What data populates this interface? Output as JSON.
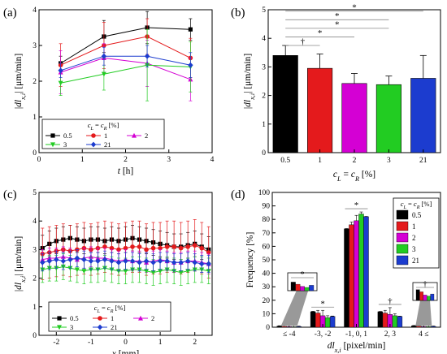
{
  "panels": {
    "a": "(a)",
    "b": "(b)",
    "c": "(c)",
    "d": "(d)"
  },
  "chart_data": [
    {
      "panel": "a",
      "type": "line",
      "xlabel": "t [h]",
      "ylabel": "|dl_x,i| [μm/min]",
      "xlim": [
        0,
        4
      ],
      "ylim": [
        0,
        4
      ],
      "xticks": [
        "0",
        "1",
        "2",
        "3",
        "4"
      ],
      "yticks": [
        "0",
        "1",
        "2",
        "3",
        "4"
      ],
      "legend_title": "c_L = c_R [%]",
      "x": [
        0.5,
        1.5,
        2.5,
        3.5
      ],
      "series": [
        {
          "name": "0.5",
          "color": "#000000",
          "marker": "square",
          "values": [
            2.5,
            3.25,
            3.5,
            3.45
          ],
          "err": [
            0.2,
            0.45,
            0.45,
            0.3
          ]
        },
        {
          "name": "1",
          "color": "#e41a1c",
          "marker": "circle",
          "values": [
            2.45,
            3.0,
            3.25,
            2.65
          ],
          "err": [
            0.6,
            0.65,
            0.5,
            0.55
          ]
        },
        {
          "name": "2",
          "color": "#d400d4",
          "marker": "tri-up",
          "values": [
            2.25,
            2.65,
            2.5,
            2.05
          ],
          "err": [
            0.6,
            0.4,
            0.65,
            0.6
          ]
        },
        {
          "name": "3",
          "color": "#22cc22",
          "marker": "tri-down",
          "values": [
            1.95,
            2.2,
            2.45,
            2.4
          ],
          "err": [
            0.35,
            0.45,
            1.0,
            0.7
          ]
        },
        {
          "name": "21",
          "color": "#1c3ccf",
          "marker": "diamond",
          "values": [
            2.3,
            2.7,
            2.7,
            2.45
          ],
          "err": [
            0.2,
            0.25,
            0.3,
            0.35
          ]
        }
      ]
    },
    {
      "panel": "b",
      "type": "bar",
      "xlabel": "c_L = c_R [%]",
      "ylabel": "|dl_x,i| [μm/min]",
      "ylim": [
        0,
        5
      ],
      "yticks": [
        "0",
        "1",
        "2",
        "3",
        "4",
        "5"
      ],
      "categories": [
        "0.5",
        "1",
        "2",
        "3",
        "21"
      ],
      "colors": [
        "#000000",
        "#e41a1c",
        "#d400d4",
        "#22cc22",
        "#1c3ccf"
      ],
      "values": [
        3.4,
        2.95,
        2.42,
        2.38,
        2.6
      ],
      "err": [
        0.35,
        0.5,
        0.35,
        0.3,
        0.8
      ],
      "significance": [
        {
          "from": 0,
          "to": 1,
          "label": "†",
          "y": 3.75
        },
        {
          "from": 0,
          "to": 2,
          "label": "*",
          "y": 4.05
        },
        {
          "from": 0,
          "to": 3,
          "label": "*",
          "y": 4.35
        },
        {
          "from": 0,
          "to": 3,
          "label": "*",
          "y": 4.65
        },
        {
          "from": 0,
          "to": 4,
          "label": "*",
          "y": 4.95
        }
      ]
    },
    {
      "panel": "c",
      "type": "line",
      "xlabel": "x [mm]",
      "ylabel": "|dl_x,i| [μm/min]",
      "xlim": [
        -2.5,
        2.5
      ],
      "ylim": [
        0,
        5
      ],
      "xticks": [
        "-2",
        "-1",
        "0",
        "1",
        "2"
      ],
      "yticks": [
        "0",
        "1",
        "2",
        "3",
        "4",
        "5"
      ],
      "legend_title": "c_L = c_R [%]",
      "x": [
        -2.4,
        -2.2,
        -2.0,
        -1.8,
        -1.6,
        -1.4,
        -1.2,
        -1.0,
        -0.8,
        -0.6,
        -0.4,
        -0.2,
        0.0,
        0.2,
        0.4,
        0.6,
        0.8,
        1.0,
        1.2,
        1.4,
        1.6,
        1.8,
        2.0,
        2.2,
        2.4
      ],
      "series": [
        {
          "name": "0.5",
          "color": "#000000",
          "marker": "square",
          "err": 0.45,
          "values": [
            3.05,
            3.2,
            3.3,
            3.35,
            3.4,
            3.35,
            3.3,
            3.35,
            3.35,
            3.3,
            3.35,
            3.3,
            3.35,
            3.4,
            3.35,
            3.3,
            3.25,
            3.2,
            3.15,
            3.1,
            3.1,
            3.15,
            3.2,
            3.1,
            3.0
          ]
        },
        {
          "name": "1",
          "color": "#e41a1c",
          "marker": "circle",
          "err": 0.9,
          "values": [
            2.85,
            2.9,
            2.95,
            3.0,
            2.95,
            3.0,
            3.05,
            3.0,
            3.05,
            3.1,
            3.05,
            3.0,
            3.05,
            3.1,
            3.1,
            3.0,
            3.05,
            3.05,
            3.1,
            3.1,
            3.05,
            3.1,
            3.15,
            3.05,
            2.9
          ]
        },
        {
          "name": "2",
          "color": "#d400d4",
          "marker": "tri-up",
          "err": 0.35,
          "values": [
            2.65,
            2.7,
            2.7,
            2.75,
            2.7,
            2.65,
            2.7,
            2.75,
            2.7,
            2.7,
            2.65,
            2.6,
            2.65,
            2.6,
            2.6,
            2.55,
            2.6,
            2.65,
            2.6,
            2.55,
            2.55,
            2.6,
            2.6,
            2.55,
            2.5
          ]
        },
        {
          "name": "3",
          "color": "#22cc22",
          "marker": "tri-down",
          "err": 0.45,
          "values": [
            2.3,
            2.35,
            2.35,
            2.4,
            2.35,
            2.3,
            2.25,
            2.3,
            2.3,
            2.35,
            2.3,
            2.25,
            2.25,
            2.3,
            2.3,
            2.25,
            2.2,
            2.25,
            2.3,
            2.25,
            2.2,
            2.25,
            2.3,
            2.3,
            2.25
          ]
        },
        {
          "name": "21",
          "color": "#1c3ccf",
          "marker": "diamond",
          "err": 0.3,
          "values": [
            2.55,
            2.6,
            2.65,
            2.6,
            2.65,
            2.7,
            2.65,
            2.6,
            2.6,
            2.65,
            2.6,
            2.55,
            2.6,
            2.6,
            2.55,
            2.6,
            2.55,
            2.6,
            2.6,
            2.55,
            2.55,
            2.6,
            2.55,
            2.5,
            2.5
          ]
        }
      ]
    },
    {
      "panel": "d",
      "type": "bar",
      "xlabel": "dl_x,i [pixel/min]",
      "ylabel": "Frequency [%]",
      "ylim": [
        0,
        100
      ],
      "yticks": [
        "0",
        "10",
        "20",
        "30",
        "40",
        "50",
        "60",
        "70",
        "80",
        "90",
        "100"
      ],
      "categories": [
        "≤ -4",
        "-3, -2",
        "-1, 0, 1",
        "2, 3",
        "4 ≤"
      ],
      "legend_title": "c_L = c_R [%]",
      "series": [
        {
          "name": "0.5",
          "color": "#000000",
          "values": [
            0.8,
            11.5,
            73,
            11.5,
            1.0
          ]
        },
        {
          "name": "1",
          "color": "#e41a1c",
          "values": [
            0.6,
            10.5,
            76,
            10.5,
            0.8
          ]
        },
        {
          "name": "2",
          "color": "#d400d4",
          "values": [
            0.4,
            8.5,
            79,
            9.5,
            0.5
          ]
        },
        {
          "name": "3",
          "color": "#22cc22",
          "values": [
            0.3,
            7.0,
            84,
            8.5,
            0.4
          ]
        },
        {
          "name": "21",
          "color": "#1c3ccf",
          "values": [
            0.5,
            8.0,
            82,
            8.0,
            0.6
          ]
        }
      ],
      "err": [
        [
          0.3,
          0.3,
          0.2,
          0.2,
          0.3
        ],
        [
          2,
          2,
          2,
          2,
          2.5
        ],
        [
          4,
          4,
          4,
          5,
          4
        ],
        [
          2,
          1.5,
          1.5,
          1.5,
          1.5
        ],
        [
          0.3,
          0.3,
          0.2,
          0.2,
          0.3
        ]
      ],
      "annotations": [
        {
          "category": 0,
          "label": "*"
        },
        {
          "category": 1,
          "label": "*"
        },
        {
          "category": 2,
          "label": "*"
        },
        {
          "category": 3,
          "label": "†"
        },
        {
          "category": 4,
          "label": "†"
        }
      ]
    }
  ]
}
